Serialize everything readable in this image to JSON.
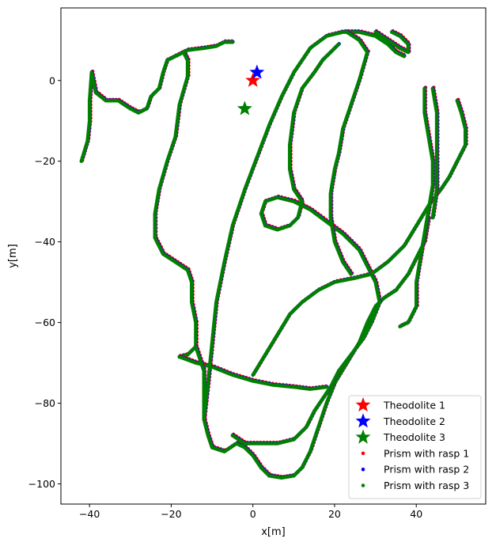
{
  "chart_data": {
    "type": "scatter",
    "xlabel": "x[m]",
    "ylabel": "y[m]",
    "xlim": [
      -47,
      57
    ],
    "ylim": [
      -105,
      18
    ],
    "xticks": [
      -40,
      -20,
      0,
      20,
      40
    ],
    "yticks": [
      0,
      -20,
      -40,
      -60,
      -80,
      -100
    ],
    "grid": false,
    "legend_position": "lower-right",
    "colors": {
      "theodolite1": "#ff0000",
      "theodolite2": "#0000ff",
      "theodolite3": "#008000",
      "rasp1": "#ff0000",
      "rasp2": "#0000ff",
      "rasp3": "#008000"
    },
    "theodolites": [
      {
        "name": "Theodolite 1",
        "x": 0,
        "y": 0,
        "color": "#ff0000"
      },
      {
        "name": "Theodolite 2",
        "x": 1,
        "y": 2,
        "color": "#0000ff"
      },
      {
        "name": "Theodolite 3",
        "x": -2,
        "y": -7,
        "color": "#008000"
      }
    ],
    "series": [
      {
        "name": "Prism with rasp 1",
        "color": "#ff0000"
      },
      {
        "name": "Prism with rasp 2",
        "color": "#0000ff"
      },
      {
        "name": "Prism with rasp 3",
        "color": "#008000"
      }
    ],
    "trajectories": [
      {
        "segment": "left-hook",
        "points": [
          [
            -42,
            -20
          ],
          [
            -40.5,
            -15
          ],
          [
            -40,
            -10
          ],
          [
            -40,
            -5
          ],
          [
            -39.5,
            2
          ],
          [
            -38.5,
            -3
          ],
          [
            -36,
            -5
          ],
          [
            -33,
            -5
          ],
          [
            -30,
            -7
          ],
          [
            -28,
            -8
          ],
          [
            -26,
            -7
          ],
          [
            -25,
            -4
          ],
          [
            -23,
            -2
          ],
          [
            -22,
            2
          ],
          [
            -21,
            5
          ],
          [
            -19,
            6
          ],
          [
            -17,
            7
          ],
          [
            -16,
            5
          ],
          [
            -16,
            1
          ],
          [
            -18,
            -6
          ],
          [
            -19,
            -14
          ],
          [
            -21,
            -20
          ],
          [
            -23,
            -27
          ],
          [
            -24,
            -33
          ],
          [
            -24,
            -39
          ],
          [
            -22,
            -43
          ],
          [
            -19,
            -45
          ],
          [
            -16,
            -47
          ],
          [
            -15,
            -50
          ],
          [
            -15,
            -55
          ],
          [
            -14,
            -60
          ],
          [
            -14,
            -66
          ],
          [
            -16,
            -68
          ],
          [
            -18,
            -68.5
          ]
        ]
      },
      {
        "segment": "top-left-branch",
        "points": [
          [
            -19,
            6
          ],
          [
            -16,
            7.5
          ],
          [
            -12,
            8
          ],
          [
            -9,
            8.5
          ],
          [
            -7,
            9.5
          ],
          [
            -5,
            9.5
          ]
        ]
      },
      {
        "segment": "horizontal-mid",
        "points": [
          [
            -18,
            -68.5
          ],
          [
            -14,
            -70
          ],
          [
            -10,
            -71
          ],
          [
            -5,
            -73
          ],
          [
            0,
            -74.5
          ],
          [
            5,
            -75.5
          ],
          [
            10,
            -76
          ],
          [
            14,
            -76.5
          ],
          [
            18,
            -76
          ]
        ]
      },
      {
        "segment": "lower-left-loop",
        "points": [
          [
            -14,
            -66
          ],
          [
            -12,
            -72
          ],
          [
            -12,
            -78
          ],
          [
            -12,
            -84
          ],
          [
            -11,
            -88
          ],
          [
            -10,
            -91
          ],
          [
            -7,
            -92
          ],
          [
            -4,
            -90
          ],
          [
            -2,
            -91
          ],
          [
            0,
            -93
          ],
          [
            2,
            -96
          ],
          [
            4,
            -98
          ],
          [
            7,
            -98.5
          ],
          [
            10,
            -98
          ],
          [
            12,
            -96
          ],
          [
            14,
            -92
          ],
          [
            16,
            -86
          ],
          [
            18,
            -80
          ],
          [
            20,
            -75
          ],
          [
            23,
            -70
          ],
          [
            26,
            -65
          ],
          [
            28,
            -60
          ],
          [
            30,
            -56
          ],
          [
            32,
            -54
          ],
          [
            35,
            -52
          ],
          [
            38,
            -48
          ],
          [
            40,
            -44
          ],
          [
            42,
            -40
          ],
          [
            43,
            -34
          ]
        ]
      },
      {
        "segment": "long-diagonal",
        "points": [
          [
            -12,
            -84
          ],
          [
            -11,
            -75
          ],
          [
            -10,
            -65
          ],
          [
            -9,
            -55
          ],
          [
            -7,
            -45
          ],
          [
            -5,
            -36
          ],
          [
            -2,
            -27
          ],
          [
            1,
            -19
          ],
          [
            4,
            -11
          ],
          [
            7,
            -4
          ],
          [
            10,
            2
          ],
          [
            14,
            8
          ],
          [
            18,
            11
          ],
          [
            22,
            12
          ],
          [
            26,
            12
          ],
          [
            30,
            11
          ],
          [
            33,
            9
          ],
          [
            35,
            7
          ],
          [
            37,
            6
          ]
        ]
      },
      {
        "segment": "parallel-return",
        "points": [
          [
            -5,
            -88
          ],
          [
            -2,
            -90
          ],
          [
            2,
            -90
          ],
          [
            6,
            -90
          ],
          [
            10,
            -89
          ],
          [
            13,
            -86
          ],
          [
            15,
            -82
          ],
          [
            17,
            -79
          ],
          [
            19,
            -76
          ],
          [
            21,
            -72
          ],
          [
            24,
            -68
          ],
          [
            27,
            -64
          ],
          [
            29,
            -60
          ],
          [
            31,
            -55
          ],
          [
            30,
            -50
          ],
          [
            28,
            -46
          ],
          [
            26,
            -42
          ],
          [
            22,
            -38
          ],
          [
            18,
            -35
          ],
          [
            14,
            -32
          ],
          [
            10,
            -30
          ],
          [
            6,
            -29
          ],
          [
            3,
            -30
          ],
          [
            2,
            -33
          ],
          [
            3,
            -36
          ],
          [
            6,
            -37
          ],
          [
            9,
            -36
          ],
          [
            11,
            -34
          ],
          [
            12,
            -30
          ],
          [
            10,
            -27
          ],
          [
            9,
            -22
          ],
          [
            9,
            -16
          ],
          [
            10,
            -8
          ],
          [
            12,
            -2
          ],
          [
            15,
            2
          ],
          [
            17,
            5
          ],
          [
            19,
            7
          ],
          [
            21,
            9
          ]
        ]
      },
      {
        "segment": "upper-right-arm",
        "points": [
          [
            0,
            -73
          ],
          [
            3,
            -68
          ],
          [
            6,
            -63
          ],
          [
            9,
            -58
          ],
          [
            12,
            -55
          ],
          [
            16,
            -52
          ],
          [
            20,
            -50
          ],
          [
            25,
            -49
          ],
          [
            29,
            -48
          ],
          [
            33,
            -45
          ],
          [
            37,
            -41
          ],
          [
            40,
            -36
          ],
          [
            43,
            -31
          ],
          [
            46,
            -27
          ],
          [
            48,
            -24
          ],
          [
            50,
            -20
          ],
          [
            52,
            -16
          ],
          [
            52,
            -12
          ],
          [
            51,
            -8
          ],
          [
            50,
            -5
          ]
        ]
      },
      {
        "segment": "right-vertical-spurs",
        "points": [
          [
            42,
            -2
          ],
          [
            42,
            -8
          ],
          [
            43,
            -14
          ],
          [
            44,
            -20
          ],
          [
            44,
            -26
          ],
          [
            43,
            -32
          ],
          [
            42,
            -38
          ],
          [
            41,
            -44
          ],
          [
            40,
            -50
          ],
          [
            40,
            -56
          ],
          [
            38,
            -60
          ],
          [
            36,
            -61
          ]
        ]
      },
      {
        "segment": "right-second-spur",
        "points": [
          [
            44,
            -2
          ],
          [
            45,
            -8
          ],
          [
            45,
            -14
          ],
          [
            45,
            -20
          ],
          [
            45,
            -27
          ],
          [
            44,
            -34
          ]
        ]
      },
      {
        "segment": "top-right-loop",
        "points": [
          [
            23,
            12
          ],
          [
            26,
            10
          ],
          [
            28,
            7
          ],
          [
            26,
            0
          ],
          [
            24,
            -6
          ],
          [
            22,
            -12
          ],
          [
            21,
            -18
          ],
          [
            20,
            -22
          ],
          [
            19,
            -28
          ],
          [
            19,
            -34
          ],
          [
            20,
            -40
          ],
          [
            22,
            -45
          ],
          [
            24,
            -48
          ]
        ]
      },
      {
        "segment": "top-right-tail",
        "points": [
          [
            30,
            12
          ],
          [
            33,
            10
          ],
          [
            36,
            8
          ],
          [
            38,
            7
          ],
          [
            38,
            9
          ],
          [
            36,
            11
          ],
          [
            34,
            12
          ]
        ]
      }
    ]
  }
}
